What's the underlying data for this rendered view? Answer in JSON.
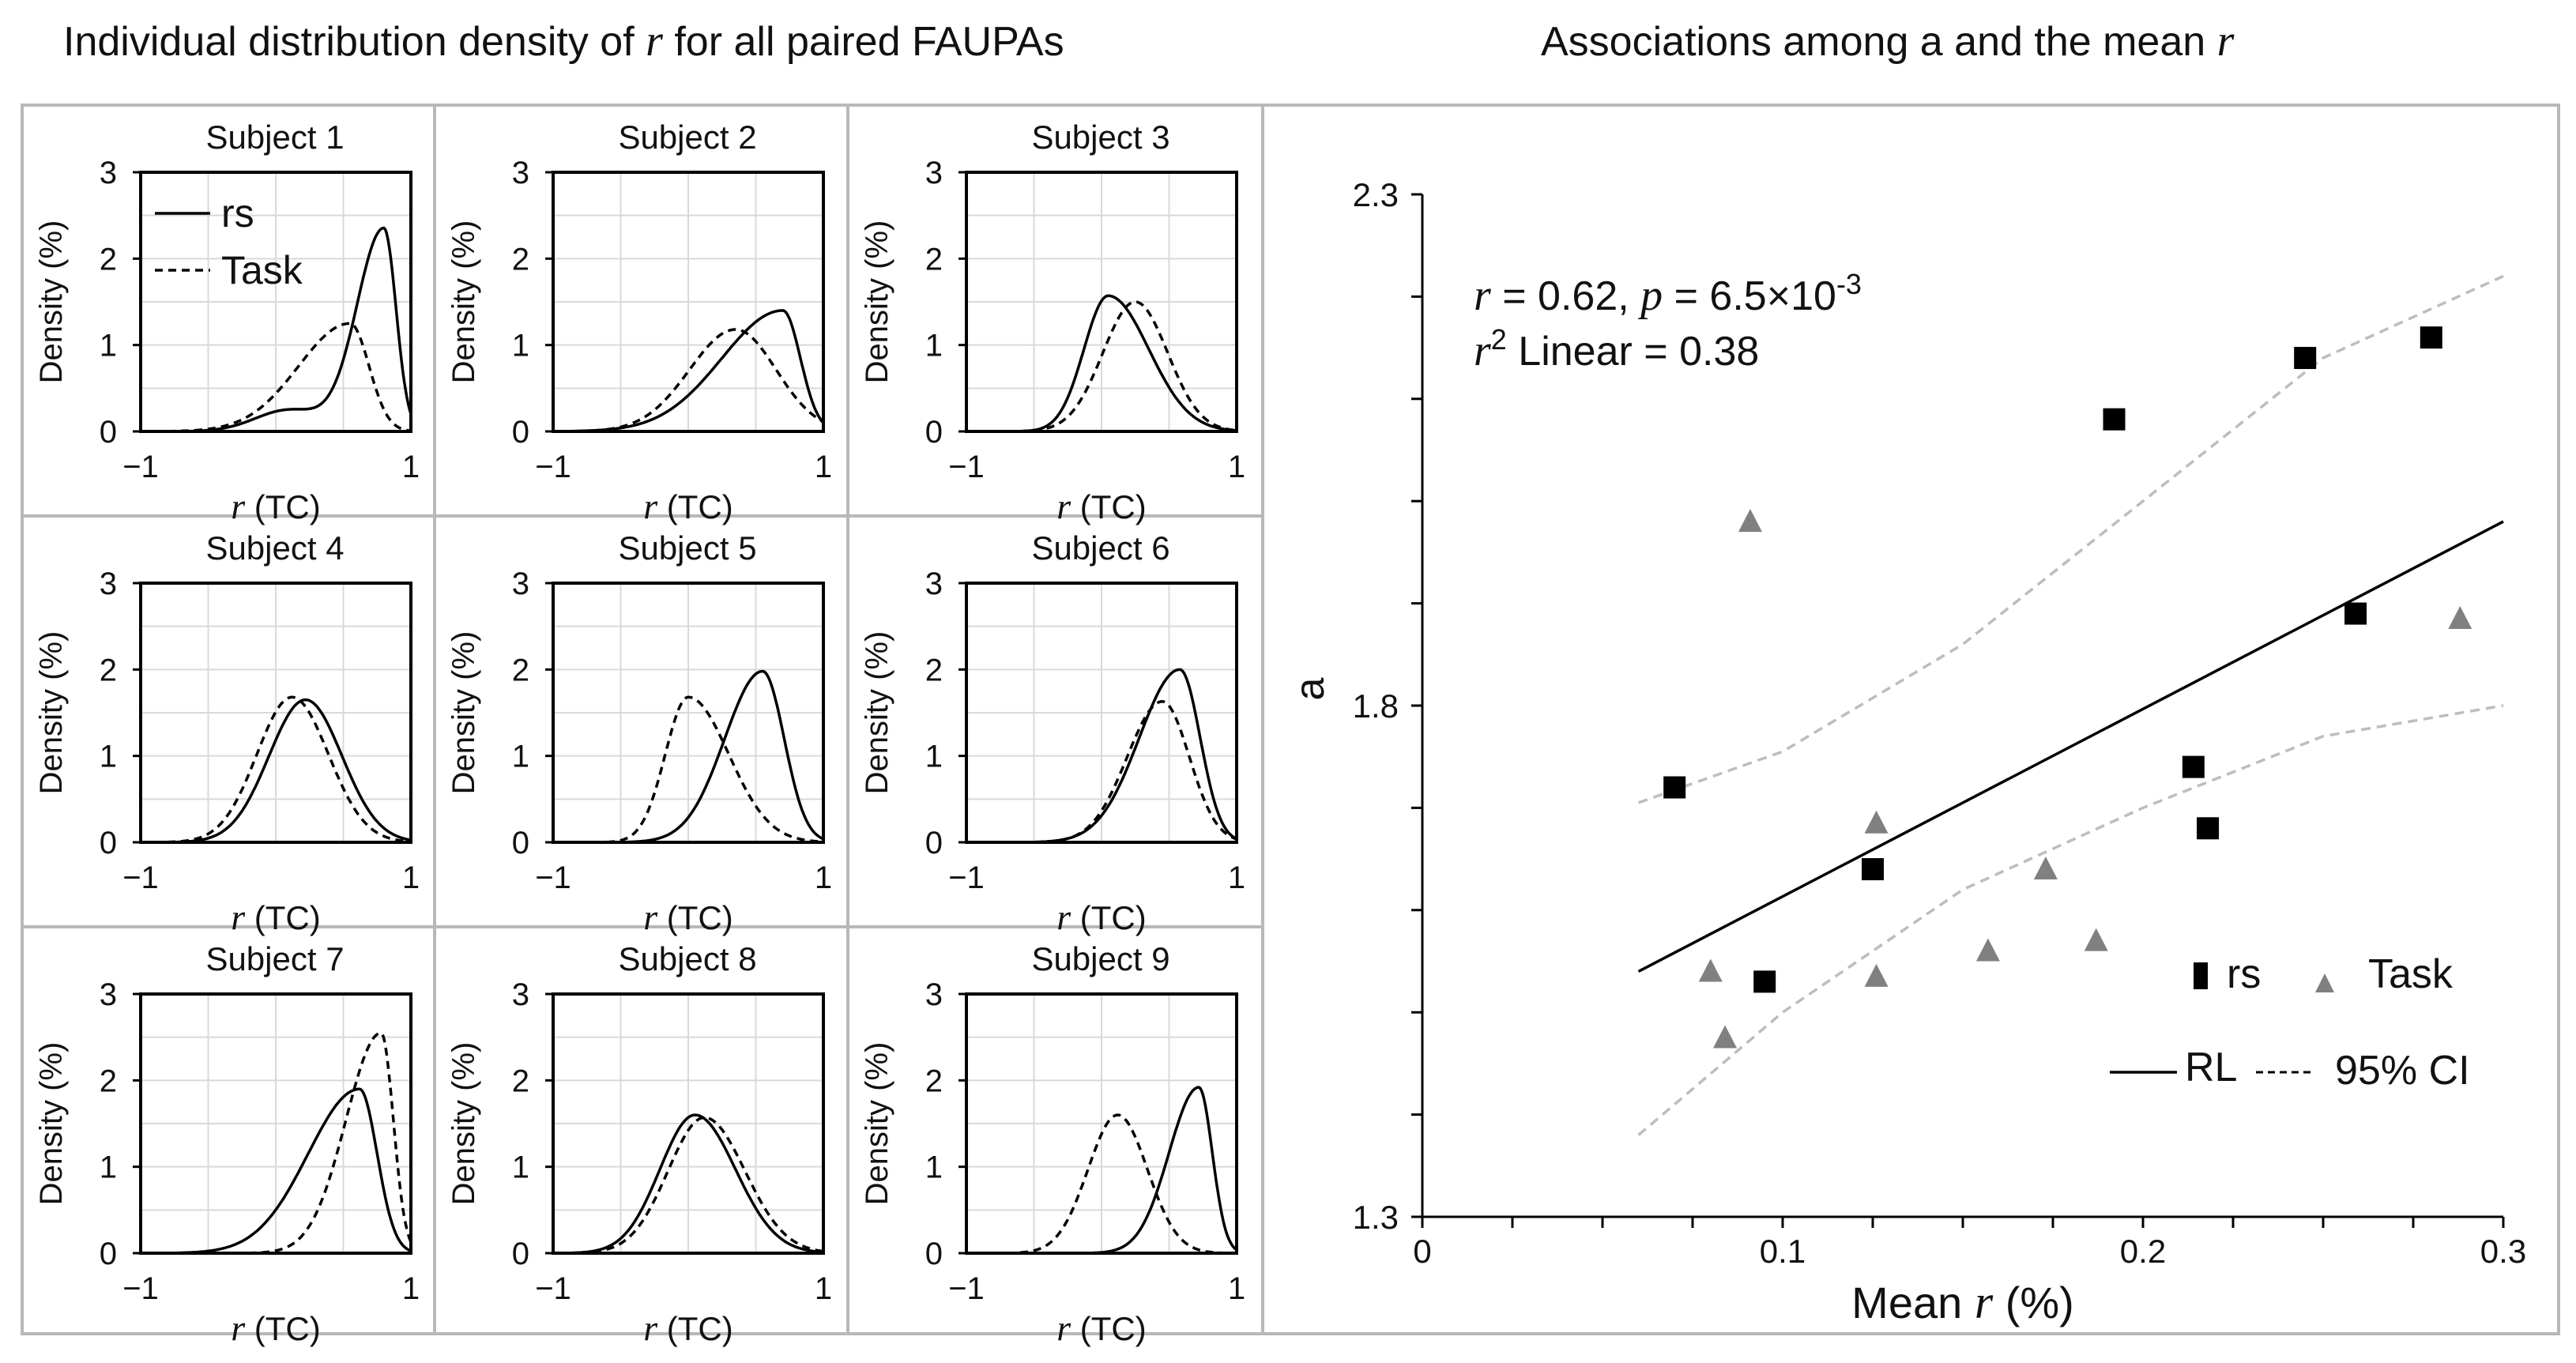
{
  "titles": {
    "left": {
      "text": "Individual  distribution density of ",
      "var": "r",
      "suffix": " for  all paired  FAUPAs"
    },
    "right": {
      "text": "Associations among a and the mean ",
      "var": "r"
    }
  },
  "colors": {
    "frame": "#b8b8b8",
    "axis": "#000000",
    "grid": "#d9d9d9",
    "rs_marker": "#000000",
    "task_marker": "#808080",
    "ci_line": "#bdbdbd"
  },
  "chart_data": [
    {
      "type": "line",
      "title": "Individual distribution density of r for all paired FAUPAs",
      "panel_label_prefix": "Subject",
      "xlabel_var": "r",
      "xlabel_suffix": " (TC)",
      "ylabel": "Density (%)",
      "xlim": [
        -1,
        1
      ],
      "ylim": [
        0,
        3
      ],
      "x_ticks": [
        {
          "v": -1,
          "label": "−1"
        },
        {
          "v": 1,
          "label": "1"
        }
      ],
      "y_ticks": [
        "0",
        "1",
        "2",
        "3"
      ],
      "legend": [
        {
          "name": "rs",
          "style": "solid"
        },
        {
          "name": "Task",
          "style": "dashed"
        }
      ],
      "legend_position": "top-left of Subject 1",
      "series_note": "each density curve described by peak location, peak height and left/right spread (r units)",
      "subjects": [
        {
          "label": "Subject 1",
          "rs": {
            "mu": 0.8,
            "h": 2.35,
            "sl": 0.2,
            "sr": 0.09,
            "shoulder": {
              "mu": 0.1,
              "h": 0.25,
              "s": 0.25
            }
          },
          "task": {
            "mu": 0.55,
            "h": 1.25,
            "sl": 0.38,
            "sr": 0.14
          }
        },
        {
          "label": "Subject 2",
          "rs": {
            "mu": 0.7,
            "h": 1.4,
            "sl": 0.45,
            "sr": 0.13
          },
          "task": {
            "mu": 0.35,
            "h": 1.18,
            "sl": 0.34,
            "sr": 0.3
          }
        },
        {
          "label": "Subject 3",
          "rs": {
            "mu": 0.05,
            "h": 1.57,
            "sl": 0.18,
            "sr": 0.3
          },
          "task": {
            "mu": 0.25,
            "h": 1.5,
            "sl": 0.24,
            "sr": 0.24
          }
        },
        {
          "label": "Subject 4",
          "rs": {
            "mu": 0.22,
            "h": 1.65,
            "sl": 0.27,
            "sr": 0.27
          },
          "task": {
            "mu": 0.12,
            "h": 1.68,
            "sl": 0.26,
            "sr": 0.27
          }
        },
        {
          "label": "Subject 5",
          "rs": {
            "mu": 0.55,
            "h": 1.98,
            "sl": 0.28,
            "sr": 0.16
          },
          "task": {
            "mu": 0.0,
            "h": 1.68,
            "sl": 0.17,
            "sr": 0.3
          }
        },
        {
          "label": "Subject 6",
          "rs": {
            "mu": 0.58,
            "h": 2.0,
            "sl": 0.3,
            "sr": 0.15
          },
          "task": {
            "mu": 0.45,
            "h": 1.63,
            "sl": 0.26,
            "sr": 0.2
          }
        },
        {
          "label": "Subject 7",
          "rs": {
            "mu": 0.62,
            "h": 1.9,
            "sl": 0.38,
            "sr": 0.13
          },
          "task": {
            "mu": 0.78,
            "h": 2.55,
            "sl": 0.26,
            "sr": 0.09
          }
        },
        {
          "label": "Subject 8",
          "rs": {
            "mu": 0.05,
            "h": 1.6,
            "sl": 0.26,
            "sr": 0.3
          },
          "task": {
            "mu": 0.12,
            "h": 1.57,
            "sl": 0.27,
            "sr": 0.3
          }
        },
        {
          "label": "Subject 9",
          "rs": {
            "mu": 0.72,
            "h": 1.92,
            "sl": 0.22,
            "sr": 0.1
          },
          "task": {
            "mu": 0.12,
            "h": 1.6,
            "sl": 0.22,
            "sr": 0.22
          }
        }
      ]
    },
    {
      "type": "scatter",
      "title": "Associations among a and the mean r",
      "xlabel_text": "Mean ",
      "xlabel_var": "r",
      "xlabel_suffix": " (%)",
      "ylabel": "a",
      "xlim": [
        0,
        0.3
      ],
      "ylim": [
        1.3,
        2.3
      ],
      "x_ticks": [
        {
          "v": 0,
          "label": "0"
        },
        {
          "v": 0.1,
          "label": "0.1"
        },
        {
          "v": 0.2,
          "label": "0.2"
        },
        {
          "v": 0.3,
          "label": "0.3"
        }
      ],
      "y_ticks": [
        {
          "v": 1.3,
          "label": "1.3"
        },
        {
          "v": 1.8,
          "label": "1.8"
        },
        {
          "v": 2.3,
          "label": "2.3"
        }
      ],
      "annotation": {
        "line1": {
          "var": "r",
          "text1": " = 0.62, ",
          "var2": "p",
          "text2": " = 6.5×10",
          "sup": "-3"
        },
        "line2": {
          "var": "r",
          "sup": "2",
          "text": " Linear = 0.38"
        }
      },
      "series": [
        {
          "name": "rs",
          "marker": "square",
          "points": [
            [
              0.07,
              1.72
            ],
            [
              0.095,
              1.53
            ],
            [
              0.125,
              1.64
            ],
            [
              0.192,
              2.08
            ],
            [
              0.214,
              1.74
            ],
            [
              0.218,
              1.68
            ],
            [
              0.245,
              2.14
            ],
            [
              0.259,
              1.89
            ],
            [
              0.28,
              2.16
            ]
          ]
        },
        {
          "name": "Task",
          "marker": "triangle",
          "points": [
            [
              0.08,
              1.54
            ],
            [
              0.084,
              1.475
            ],
            [
              0.091,
              1.98
            ],
            [
              0.126,
              1.685
            ],
            [
              0.126,
              1.535
            ],
            [
              0.157,
              1.56
            ],
            [
              0.173,
              1.64
            ],
            [
              0.187,
              1.57
            ],
            [
              0.288,
              1.885
            ]
          ]
        }
      ],
      "fit": {
        "name": "RL",
        "style": "solid",
        "x": [
          0.06,
          0.3
        ],
        "y": [
          1.54,
          1.98
        ]
      },
      "ci": {
        "name": "95% CI",
        "style": "dashed",
        "upper": [
          [
            0.06,
            1.705
          ],
          [
            0.1,
            1.755
          ],
          [
            0.15,
            1.86
          ],
          [
            0.2,
            2.0
          ],
          [
            0.25,
            2.14
          ],
          [
            0.3,
            2.22
          ]
        ],
        "lower": [
          [
            0.06,
            1.38
          ],
          [
            0.1,
            1.5
          ],
          [
            0.15,
            1.62
          ],
          [
            0.2,
            1.7
          ],
          [
            0.25,
            1.77
          ],
          [
            0.3,
            1.8
          ]
        ]
      },
      "legend": [
        {
          "name": "rs"
        },
        {
          "name": "Task"
        },
        {
          "name": "RL"
        },
        {
          "name": "95% CI"
        }
      ],
      "legend_position": "bottom-right"
    }
  ]
}
